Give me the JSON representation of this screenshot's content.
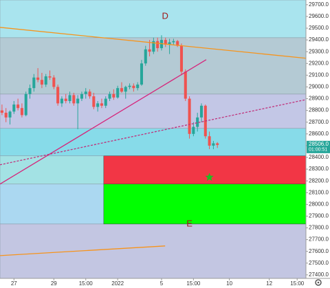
{
  "chart_data": {
    "type": "candlestick",
    "annotations": [
      {
        "text": "D",
        "x": 40.9,
        "y": 29599
      },
      {
        "text": "E",
        "x": 47,
        "y": 27833
      }
    ],
    "xlim": [
      -0.5,
      76.2
    ],
    "ylim": [
      27370,
      29740
    ],
    "xticks": [
      {
        "value": 3,
        "label": "27"
      },
      {
        "value": 13,
        "label": "29"
      },
      {
        "value": 21,
        "label": "15:00"
      },
      {
        "value": 29,
        "label": "2022"
      },
      {
        "value": 40,
        "label": "5"
      },
      {
        "value": 48,
        "label": "15:00"
      },
      {
        "value": 57,
        "label": "10"
      },
      {
        "value": 67,
        "label": "12"
      },
      {
        "value": 74,
        "label": "15:00"
      }
    ],
    "yticks": [
      {
        "value": 29700,
        "label": "29700.0"
      },
      {
        "value": 29600,
        "label": "29600.0"
      },
      {
        "value": 29500,
        "label": "29500.0"
      },
      {
        "value": 29400,
        "label": "29400.0"
      },
      {
        "value": 29300,
        "label": "29300.0"
      },
      {
        "value": 29200,
        "label": "29200.0"
      },
      {
        "value": 29100,
        "label": "29100.0"
      },
      {
        "value": 29000,
        "label": "29000.0"
      },
      {
        "value": 28900,
        "label": "28900.0"
      },
      {
        "value": 28800,
        "label": "28800.0"
      },
      {
        "value": 28700,
        "label": "28700.0"
      },
      {
        "value": 28600,
        "label": "28600.0"
      },
      {
        "value": 28500,
        "label": "28500.0"
      },
      {
        "value": 28400,
        "label": "28400.0"
      },
      {
        "value": 28300,
        "label": "28300.0"
      },
      {
        "value": 28200,
        "label": "28200.0"
      },
      {
        "value": 28100,
        "label": "28100.0"
      },
      {
        "value": 28000,
        "label": "28000.0"
      },
      {
        "value": 27900,
        "label": "27900.0"
      },
      {
        "value": 27800,
        "label": "27800.0"
      },
      {
        "value": 27700,
        "label": "27700.0"
      },
      {
        "value": 27600,
        "label": "27600.0"
      },
      {
        "value": 27500,
        "label": "27500.0"
      },
      {
        "value": 27400,
        "label": "27400.0"
      }
    ],
    "up_color": "#26a69a",
    "down_color": "#ef5350",
    "open": [
      28800,
      28780,
      28740,
      28790,
      28850,
      28820,
      28760,
      28940,
      28990,
      29080,
      29060,
      29020,
      29090,
      29080,
      29000,
      28860,
      28900,
      28880,
      28930,
      28860,
      28900,
      28940,
      28960,
      28920,
      28830,
      28860,
      28840,
      28900,
      28940,
      28910,
      28990,
      28960,
      29000,
      29010,
      28990,
      29020,
      29200,
      29320,
      29300,
      29390,
      29330,
      29400,
      29360,
      29380,
      29390,
      29350,
      29130,
      28900,
      28600,
      28660,
      28740,
      28840,
      28580,
      28500,
      28520
    ],
    "high": [
      28850,
      28820,
      28800,
      28880,
      28900,
      28860,
      28960,
      29020,
      29110,
      29160,
      29120,
      29110,
      29140,
      29100,
      29020,
      28920,
      28940,
      28960,
      28950,
      28930,
      28960,
      28990,
      28980,
      28950,
      28880,
      28900,
      28920,
      28960,
      28980,
      29010,
      29040,
      29010,
      29030,
      29030,
      29040,
      29230,
      29350,
      29400,
      29420,
      29420,
      29440,
      29420,
      29410,
      29410,
      29400,
      29370,
      29150,
      28920,
      28700,
      28780,
      28860,
      28850,
      28620,
      28540,
      28530
    ],
    "low": [
      28760,
      28700,
      28680,
      28770,
      28800,
      28740,
      28750,
      28900,
      28960,
      29040,
      28990,
      29000,
      29060,
      28980,
      28840,
      28830,
      28860,
      28860,
      28840,
      28640,
      28880,
      28900,
      28900,
      28810,
      28790,
      28820,
      28820,
      28880,
      28890,
      28900,
      28950,
      28900,
      28980,
      28960,
      28970,
      29010,
      29180,
      29260,
      29280,
      29300,
      29310,
      29340,
      29280,
      29360,
      29340,
      29100,
      28880,
      28560,
      28580,
      28620,
      28700,
      28560,
      28470,
      28470,
      28480
    ],
    "close": [
      28780,
      28740,
      28790,
      28850,
      28820,
      28760,
      28940,
      28990,
      29080,
      29060,
      29020,
      29090,
      29080,
      29000,
      28860,
      28900,
      28880,
      28930,
      28860,
      28900,
      28940,
      28960,
      28920,
      28830,
      28860,
      28840,
      28900,
      28940,
      28910,
      28990,
      28960,
      29000,
      29010,
      28990,
      29020,
      29200,
      29320,
      29300,
      29390,
      29330,
      29400,
      29360,
      29380,
      29390,
      29350,
      29130,
      28900,
      28600,
      28660,
      28740,
      28840,
      28580,
      28500,
      28520,
      28506
    ],
    "zones": [
      {
        "low": 29419,
        "high": 29740,
        "color": "#a9e4ee"
      },
      {
        "low": 28939,
        "high": 29419,
        "color": "#b4cad4"
      },
      {
        "low": 28647,
        "high": 28939,
        "color": "#c3c7e6"
      },
      {
        "low": 28413,
        "high": 28647,
        "color": "#87dbe9"
      },
      {
        "low": 28173,
        "high": 28413,
        "color": "#a3e2e4"
      },
      {
        "low": 27833,
        "high": 28173,
        "color": "#abd8f1"
      },
      {
        "low": 27370,
        "high": 27833,
        "color": "#c3c6e2"
      }
    ],
    "boxes": [
      {
        "x": [
          25.5,
          76.2
        ],
        "low": 28173,
        "high": 28413,
        "color": "#f23645"
      },
      {
        "x": [
          25.5,
          76.2
        ],
        "low": 27833,
        "high": 28173,
        "color": "#00ff00"
      }
    ],
    "lines": [
      {
        "x": [
          -0.5,
          76.2
        ],
        "y": [
          29507,
          29244
        ],
        "color": "#f7931a",
        "dash": false
      },
      {
        "x": [
          -0.5,
          51.2
        ],
        "y": [
          28173,
          29232
        ],
        "color": "#d6247a",
        "dash": false
      },
      {
        "x": [
          -0.5,
          76.2
        ],
        "y": [
          28337,
          28892
        ],
        "color": "#c0307a",
        "dash": true
      },
      {
        "x": [
          -0.5,
          40.9
        ],
        "y": [
          27564,
          27646
        ],
        "color": "#f7931a",
        "dash": false
      }
    ],
    "star": {
      "x": 52,
      "y": 28231,
      "color": "#22bb22"
    },
    "last_price": {
      "value": 28506,
      "label": "28506.0"
    },
    "countdown": "01:00:51"
  }
}
